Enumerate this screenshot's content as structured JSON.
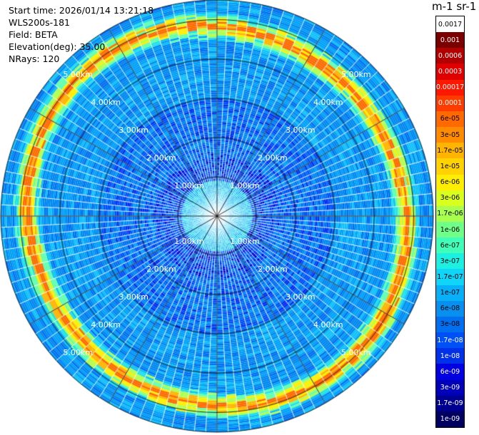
{
  "header": {
    "start_time": "Start time: 2026/01/14 13:21:18",
    "instrument": "WLS200s-181",
    "field": "Field: BETA",
    "elevation": "Elevation(deg): 35.00",
    "nrays": "NRays: 120"
  },
  "colorbar": {
    "title": "m-1 sr-1",
    "ticks": [
      "0.0017",
      "0.001",
      "0.0006",
      "0.0003",
      "0.00017",
      "0.0001",
      "6e-05",
      "3e-05",
      "1.7e-05",
      "1e-05",
      "6e-06",
      "3e-06",
      "1.7e-06",
      "1e-06",
      "6e-07",
      "3e-07",
      "1.7e-07",
      "1e-07",
      "6e-08",
      "3e-08",
      "1.7e-08",
      "1e-08",
      "6e-09",
      "3e-09",
      "1.7e-09",
      "1e-09"
    ],
    "colors": [
      "#ffffff",
      "#7a0000",
      "#b20000",
      "#e00000",
      "#ff1800",
      "#ff3c00",
      "#ff6a00",
      "#ff8c00",
      "#ffb400",
      "#ffd200",
      "#ffee00",
      "#d8ff1e",
      "#a8ff50",
      "#70ff88",
      "#40ffb8",
      "#1cf0e0",
      "#10d4f8",
      "#08b0f8",
      "#0890f0",
      "#0070f0",
      "#0050f8",
      "#0030e8",
      "#0000e0",
      "#0000b8",
      "#000090",
      "#000060"
    ],
    "text_colors": [
      "#000000",
      "#ffffff",
      "#ffffff",
      "#ffffff",
      "#ffffff",
      "#ffffff",
      "#000000",
      "#000000",
      "#000000",
      "#000000",
      "#000000",
      "#000000",
      "#000000",
      "#000000",
      "#000000",
      "#000000",
      "#000000",
      "#000000",
      "#000000",
      "#000000",
      "#ffffff",
      "#ffffff",
      "#ffffff",
      "#ffffff",
      "#ffffff",
      "#ffffff"
    ]
  },
  "rings": {
    "labels": [
      "1.00km",
      "2.00km",
      "3.00km",
      "4.00km",
      "5.00km"
    ]
  },
  "scan": {
    "n_rays": 120,
    "max_range_km": 5.5,
    "aerosol_layer_km": 4.8
  }
}
